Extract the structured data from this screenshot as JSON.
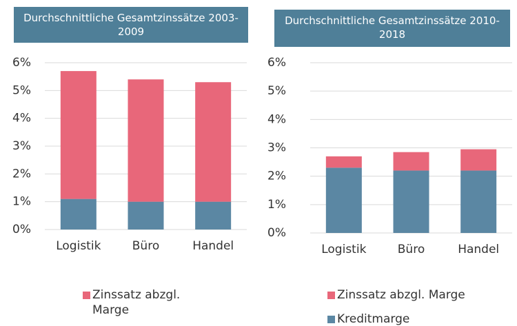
{
  "chart_data": [
    {
      "type": "stacked_bar",
      "title": "Durchschnittliche Gesamtzinssätze 2003-2009",
      "categories": [
        "Logistik",
        "Büro",
        "Handel"
      ],
      "series": [
        {
          "name": "Kreditmarge",
          "color": "#5b87a3",
          "values": [
            1.1,
            1.0,
            1.0
          ]
        },
        {
          "name": "Zinssatz abzgl. Marge",
          "color": "#e8677a",
          "values": [
            4.6,
            4.4,
            4.3
          ]
        }
      ],
      "ylim": [
        0,
        6
      ],
      "yticks": [
        {
          "value": 0,
          "label": "0%"
        },
        {
          "value": 1,
          "label": "1%"
        },
        {
          "value": 2,
          "label": "2%"
        },
        {
          "value": 3,
          "label": "3%"
        },
        {
          "value": 4,
          "label": "4%"
        },
        {
          "value": 5,
          "label": "5%"
        },
        {
          "value": 6,
          "label": "6%"
        }
      ],
      "grid": true
    },
    {
      "type": "stacked_bar",
      "title": "Durchschnittliche Gesamtzinssätze 2010-2018",
      "categories": [
        "Logistik",
        "Büro",
        "Handel"
      ],
      "series": [
        {
          "name": "Kreditmarge",
          "color": "#5b87a3",
          "values": [
            2.3,
            2.2,
            2.2
          ]
        },
        {
          "name": "Zinssatz abzgl. Marge",
          "color": "#e8677a",
          "values": [
            0.4,
            0.65,
            0.75
          ]
        }
      ],
      "ylim": [
        0,
        6
      ],
      "yticks": [
        {
          "value": 0,
          "label": "0%"
        },
        {
          "value": 1,
          "label": "1%"
        },
        {
          "value": 2,
          "label": "2%"
        },
        {
          "value": 3,
          "label": "3%"
        },
        {
          "value": 4,
          "label": "4%"
        },
        {
          "value": 5,
          "label": "5%"
        },
        {
          "value": 6,
          "label": "6%"
        }
      ],
      "grid": true
    }
  ]
}
